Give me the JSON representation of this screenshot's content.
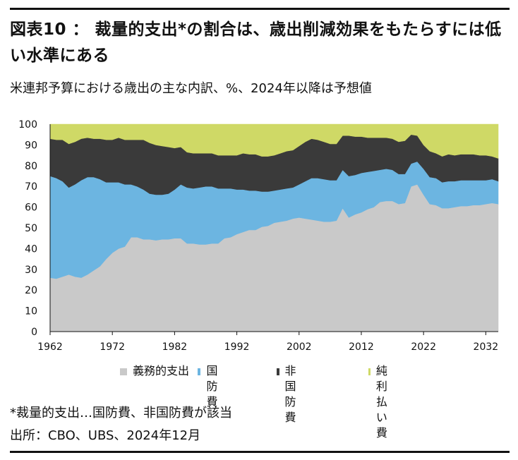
{
  "header": {
    "title": "図表10 ： 裁量的支出*の割合は、歳出削減効果をもたらすには低い水準にある",
    "subtitle": "米連邦予算における歳出の主な内訳、%、2024年以降は予想値"
  },
  "footer": {
    "note": "*裁量的支出…国防費、非国防費が該当",
    "source": "出所：CBO、UBS、2024年12月"
  },
  "chart_data": {
    "type": "area",
    "stacked": true,
    "title": "",
    "xlabel": "",
    "ylabel": "",
    "xlim": [
      1962,
      2034
    ],
    "ylim": [
      0,
      100
    ],
    "x_ticks": [
      "1962",
      "1972",
      "1982",
      "1992",
      "2002",
      "2012",
      "2022",
      "2032"
    ],
    "y_ticks": [
      "0",
      "10",
      "20",
      "30",
      "40",
      "50",
      "60",
      "70",
      "80",
      "90",
      "100"
    ],
    "grid": false,
    "legend_position": "bottom",
    "x": [
      1962,
      1963,
      1964,
      1965,
      1966,
      1967,
      1968,
      1969,
      1970,
      1971,
      1972,
      1973,
      1974,
      1975,
      1976,
      1977,
      1978,
      1979,
      1980,
      1981,
      1982,
      1983,
      1984,
      1985,
      1986,
      1987,
      1988,
      1989,
      1990,
      1991,
      1992,
      1993,
      1994,
      1995,
      1996,
      1997,
      1998,
      1999,
      2000,
      2001,
      2002,
      2003,
      2004,
      2005,
      2006,
      2007,
      2008,
      2009,
      2010,
      2011,
      2012,
      2013,
      2014,
      2015,
      2016,
      2017,
      2018,
      2019,
      2020,
      2021,
      2022,
      2023,
      2024,
      2025,
      2026,
      2027,
      2028,
      2029,
      2030,
      2031,
      2032,
      2033,
      2034
    ],
    "series": [
      {
        "name": "義務的支出",
        "color": "#c9c9c9",
        "values": [
          26,
          25.5,
          26.5,
          27.5,
          26.5,
          26,
          27.5,
          29.5,
          31.5,
          35,
          38,
          40,
          41,
          45.5,
          45.5,
          44.5,
          44.5,
          44,
          44.5,
          44.5,
          45,
          45,
          42.5,
          42.5,
          42,
          42,
          42.5,
          42.5,
          45,
          45.5,
          47,
          48,
          49,
          49,
          50.5,
          51,
          52.5,
          53,
          53.5,
          54.5,
          55,
          54.5,
          54,
          53.5,
          53,
          53,
          53.5,
          59.5,
          55,
          56.5,
          57.5,
          59,
          60,
          62.5,
          63,
          63,
          61.5,
          62,
          70,
          71,
          66,
          61.5,
          61,
          59.5,
          59.5,
          60,
          60.5,
          60.5,
          61,
          61,
          61.5,
          62,
          61.5
        ]
      },
      {
        "name": "国防費",
        "color": "#6cb5e1",
        "values": [
          49,
          48.5,
          46,
          42,
          44.5,
          47,
          47,
          45,
          42,
          37,
          34,
          32,
          30,
          25.5,
          24.5,
          24,
          22,
          22,
          21.5,
          22,
          23.5,
          26,
          27,
          26.5,
          27.5,
          28,
          27.5,
          26.5,
          24,
          23.5,
          21.5,
          20.5,
          19,
          19,
          17,
          16.5,
          15.5,
          15.5,
          15.5,
          15,
          16,
          18,
          20,
          20.5,
          20.5,
          20,
          19.5,
          18.5,
          20,
          19,
          19,
          18,
          17.5,
          15.5,
          15.5,
          15,
          14.5,
          14,
          11,
          11,
          12.5,
          13,
          13,
          12.5,
          13,
          12.5,
          12.5,
          12.5,
          12,
          12,
          11.5,
          11.5,
          11
        ]
      },
      {
        "name": "非国防費",
        "color": "#3a3a3a",
        "values": [
          18,
          18.5,
          20,
          21,
          20.5,
          20,
          19,
          18.5,
          19.5,
          20.5,
          20.5,
          21.5,
          21.5,
          21.5,
          22.5,
          24,
          24.5,
          24,
          23.5,
          22.5,
          20,
          18,
          17,
          17,
          16.5,
          16,
          16,
          16,
          16,
          16,
          16.5,
          17.5,
          17.5,
          17.5,
          17,
          17,
          17,
          17.5,
          18,
          18,
          18.5,
          19,
          19,
          18.5,
          18,
          17.5,
          17.5,
          16.5,
          19.5,
          18.5,
          17.5,
          16.5,
          16,
          15.5,
          15,
          15,
          15.5,
          16,
          14,
          12.5,
          11.5,
          12.5,
          12,
          12.5,
          13,
          12.5,
          12.5,
          12.5,
          12.5,
          12,
          12,
          11,
          11
        ]
      },
      {
        "name": "純利払い費",
        "color": "#cfd966",
        "values": [
          7,
          7.5,
          7.5,
          9.5,
          8.5,
          7,
          6.5,
          7,
          7,
          7.5,
          7.5,
          6.5,
          7.5,
          7.5,
          7.5,
          7.5,
          9,
          10,
          10.5,
          11,
          11.5,
          11,
          13.5,
          14,
          14,
          14,
          14,
          15,
          15,
          15,
          15,
          14,
          14.5,
          14.5,
          15.5,
          15.5,
          15,
          14,
          13,
          12.5,
          10.5,
          8.5,
          7,
          7.5,
          8.5,
          9.5,
          9.5,
          5.5,
          5.5,
          6,
          6,
          6.5,
          6.5,
          6.5,
          6.5,
          7,
          8.5,
          8,
          5,
          5.5,
          10,
          13,
          14,
          15.5,
          14.5,
          15,
          14.5,
          14.5,
          14.5,
          15,
          15,
          15.5,
          16.5
        ]
      }
    ]
  },
  "legend": {
    "items": [
      {
        "label": "義務的支出",
        "color": "#c9c9c9"
      },
      {
        "label": "国防費",
        "color": "#6cb5e1"
      },
      {
        "label": "非国防費",
        "color": "#3a3a3a"
      },
      {
        "label": "純利払い費",
        "color": "#cfd966"
      }
    ]
  }
}
